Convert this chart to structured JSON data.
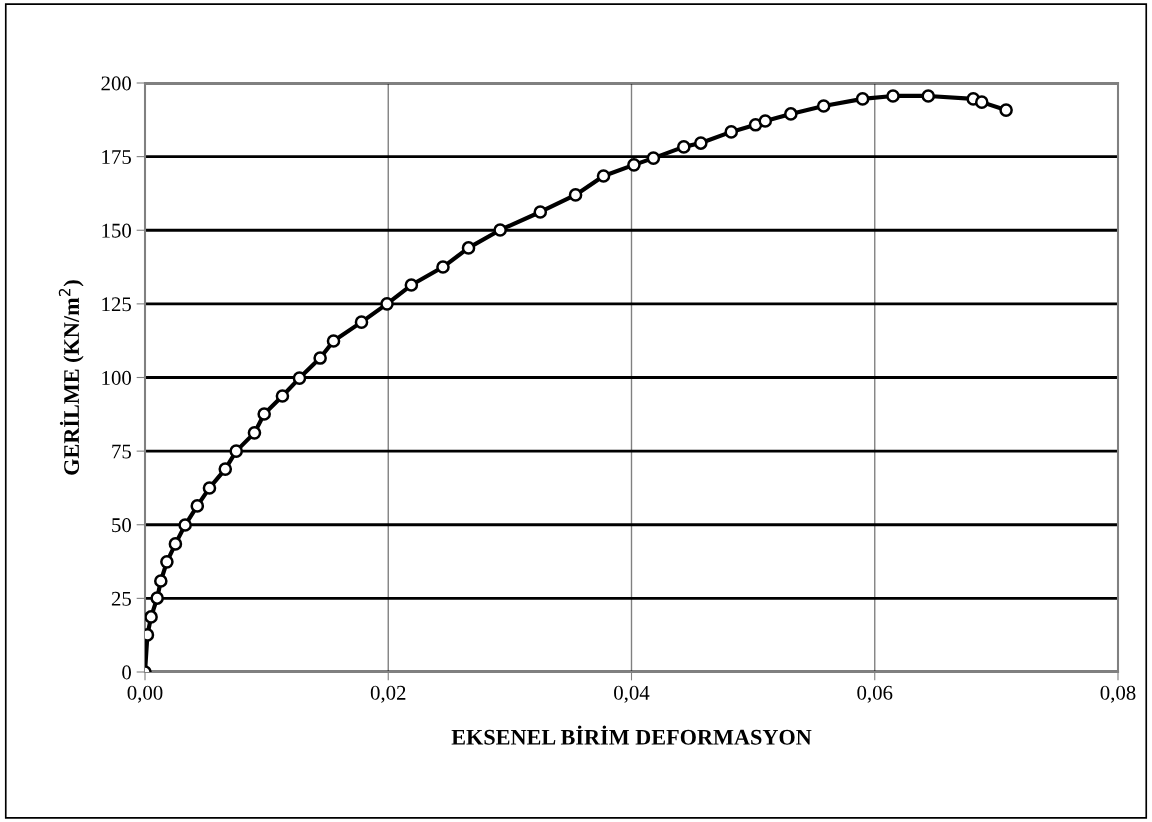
{
  "chart_data": {
    "type": "line",
    "xlabel": "EKSENEL BİRİM DEFORMASYON",
    "ylabel": "GERİLME (KN/m$^{2}$)",
    "x": [
      0,
      0.0002,
      0.0005,
      0.001,
      0.0013,
      0.0018,
      0.0025,
      0.0033,
      0.0043,
      0.0053,
      0.0066,
      0.0075,
      0.009,
      0.0098,
      0.0113,
      0.0127,
      0.0144,
      0.0155,
      0.0178,
      0.0199,
      0.0219,
      0.0245,
      0.0266,
      0.0292,
      0.0325,
      0.0354,
      0.0377,
      0.0402,
      0.0418,
      0.0443,
      0.0457,
      0.0482,
      0.0502,
      0.051,
      0.0531,
      0.0558,
      0.059,
      0.0615,
      0.0644,
      0.0681,
      0.0688,
      0.0708
    ],
    "series": [
      {
        "color": "#000000",
        "values": [
          0,
          12.6,
          18.7,
          25.1,
          30.9,
          37.4,
          43.5,
          49.9,
          56.4,
          62.5,
          68.9,
          75.0,
          81.2,
          87.6,
          93.7,
          99.8,
          106.6,
          112.4,
          118.8,
          125.0,
          131.4,
          137.5,
          144.0,
          150.1,
          156.2,
          162.0,
          168.4,
          172.2,
          174.5,
          178.3,
          179.6,
          183.4,
          185.8,
          187.1,
          189.5,
          192.2,
          194.6,
          195.6,
          195.6,
          194.6,
          193.5,
          190.8
        ]
      }
    ],
    "xlim": [
      0,
      0.08
    ],
    "xticks": [
      {
        "value": 0,
        "label": "0,00"
      },
      {
        "value": 0.02,
        "label": "0,02"
      },
      {
        "value": 0.04,
        "label": "0,04"
      },
      {
        "value": 0.06,
        "label": "0,06"
      },
      {
        "value": 0.08,
        "label": "0,08"
      }
    ],
    "ylim": [
      0,
      200
    ],
    "yticks": [
      0,
      25,
      50,
      75,
      100,
      125,
      150,
      175,
      200
    ],
    "grid": true,
    "marker": "circle",
    "line_style": "solid"
  }
}
